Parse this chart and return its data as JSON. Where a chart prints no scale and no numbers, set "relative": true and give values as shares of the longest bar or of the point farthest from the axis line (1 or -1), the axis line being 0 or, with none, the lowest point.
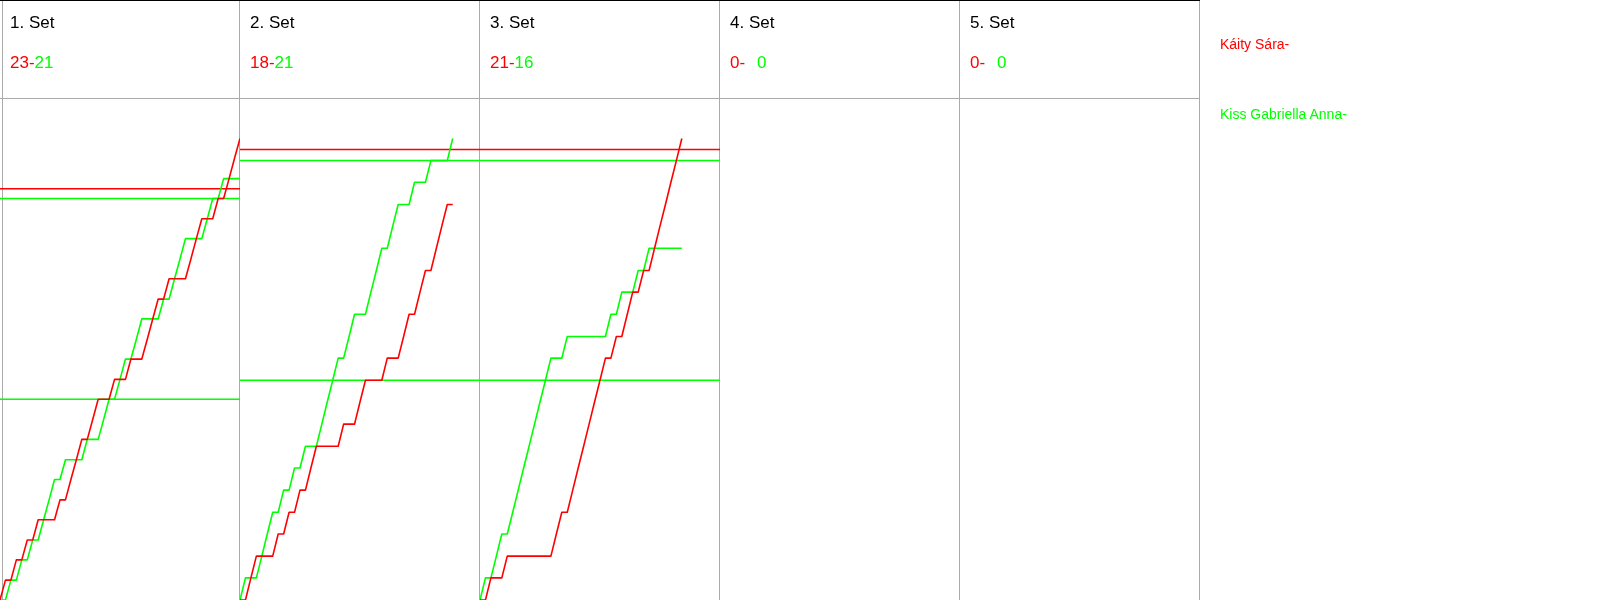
{
  "chart_data": [
    {
      "type": "line",
      "title": "1. Set",
      "annotations": [
        "23-",
        "21"
      ],
      "relative": true,
      "categories": [
        null,
        null,
        null,
        null,
        null,
        null,
        null,
        null,
        null,
        null,
        null,
        null,
        null,
        null,
        null,
        null,
        null,
        null,
        null,
        null,
        null,
        null,
        null,
        null,
        null,
        null,
        null,
        null,
        null,
        null,
        null,
        null,
        null,
        null,
        null,
        null,
        null,
        null,
        null,
        null,
        null,
        null,
        null,
        null,
        null
      ],
      "series": [
        {
          "color": "#ff0000",
          "values": [
            0,
            0.043,
            0.043,
            0.087,
            0.087,
            0.13,
            0.13,
            0.174,
            0.174,
            0.174,
            0.174,
            0.217,
            0.217,
            0.261,
            0.304,
            0.348,
            0.348,
            0.391,
            0.435,
            0.435,
            0.435,
            0.478,
            0.478,
            0.478,
            0.522,
            0.522,
            0.522,
            0.565,
            0.609,
            0.652,
            0.652,
            0.696,
            0.696,
            0.696,
            0.696,
            0.739,
            0.783,
            0.826,
            0.826,
            0.826,
            0.87,
            0.87,
            0.913,
            0.957,
            1
          ]
        },
        {
          "color": "#00ff00",
          "values": [
            0,
            0,
            0.043,
            0.043,
            0.087,
            0.087,
            0.13,
            0.13,
            0.174,
            0.217,
            0.261,
            0.261,
            0.304,
            0.304,
            0.304,
            0.304,
            0.348,
            0.348,
            0.348,
            0.391,
            0.435,
            0.435,
            0.478,
            0.522,
            0.522,
            0.565,
            0.609,
            0.609,
            0.609,
            0.609,
            0.652,
            0.652,
            0.696,
            0.739,
            0.783,
            0.783,
            0.783,
            0.783,
            0.826,
            0.87,
            0.87,
            0.913,
            0.913,
            0.913,
            0.913
          ]
        }
      ],
      "ref_lines": [
        {
          "axis": "y",
          "value": 0.891,
          "color": "#ff0000"
        },
        {
          "axis": "y",
          "value": 0.87,
          "color": "#00ff00"
        },
        {
          "axis": "y",
          "value": 0.435,
          "color": "#00ff00"
        }
      ]
    },
    {
      "type": "line",
      "title": "2. Set",
      "annotations": [
        "18-",
        "21"
      ],
      "relative": true,
      "categories": [
        null,
        null,
        null,
        null,
        null,
        null,
        null,
        null,
        null,
        null,
        null,
        null,
        null,
        null,
        null,
        null,
        null,
        null,
        null,
        null,
        null,
        null,
        null,
        null,
        null,
        null,
        null,
        null,
        null,
        null,
        null,
        null,
        null,
        null,
        null,
        null,
        null,
        null,
        null,
        null,
        null,
        null,
        null,
        null,
        null
      ],
      "series": [
        {
          "color": "#ff0000",
          "values": [
            0,
            0,
            0.048,
            0.095,
            0.095,
            0.095,
            0.095,
            0.143,
            0.143,
            0.19,
            0.19,
            0.238,
            0.238,
            0.286,
            0.333,
            0.333,
            0.333,
            0.333,
            0.333,
            0.381,
            0.381,
            0.381,
            0.429,
            0.476,
            0.476,
            0.476,
            0.476,
            0.524,
            0.524,
            0.524,
            0.571,
            0.619,
            0.619,
            0.667,
            0.714,
            0.714,
            0.762,
            0.81,
            0.857,
            0.857,
            null,
            null,
            null,
            null,
            null
          ]
        },
        {
          "color": "#00ff00",
          "values": [
            0,
            0.048,
            0.048,
            0.048,
            0.095,
            0.143,
            0.19,
            0.19,
            0.238,
            0.238,
            0.286,
            0.286,
            0.333,
            0.333,
            0.333,
            0.381,
            0.429,
            0.476,
            0.524,
            0.524,
            0.571,
            0.619,
            0.619,
            0.619,
            0.667,
            0.714,
            0.762,
            0.762,
            0.81,
            0.857,
            0.857,
            0.857,
            0.905,
            0.905,
            0.905,
            0.952,
            0.952,
            0.952,
            0.952,
            1,
            null,
            null,
            null,
            null,
            null
          ]
        }
      ],
      "ref_lines": [
        {
          "axis": "y",
          "value": 0.976,
          "color": "#ff0000"
        },
        {
          "axis": "y",
          "value": 0.952,
          "color": "#00ff00"
        },
        {
          "axis": "y",
          "value": 0.476,
          "color": "#00ff00"
        }
      ]
    },
    {
      "type": "line",
      "title": "3. Set",
      "annotations": [
        "21-",
        "16"
      ],
      "relative": true,
      "legend": "right",
      "categories": [
        null,
        null,
        null,
        null,
        null,
        null,
        null,
        null,
        null,
        null,
        null,
        null,
        null,
        null,
        null,
        null,
        null,
        null,
        null,
        null,
        null,
        null,
        null,
        null,
        null,
        null,
        null,
        null,
        null,
        null,
        null,
        null,
        null,
        null,
        null,
        null,
        null,
        null,
        null,
        null,
        null,
        null,
        null,
        null,
        null
      ],
      "series": [
        {
          "name": "Káity Sára-",
          "color": "#ff0000",
          "values": [
            0,
            0,
            0.048,
            0.048,
            0.048,
            0.095,
            0.095,
            0.095,
            0.095,
            0.095,
            0.095,
            0.095,
            0.095,
            0.095,
            0.143,
            0.19,
            0.19,
            0.238,
            0.286,
            0.333,
            0.381,
            0.429,
            0.476,
            0.524,
            0.524,
            0.571,
            0.571,
            0.619,
            0.667,
            0.667,
            0.714,
            0.714,
            0.762,
            0.81,
            0.857,
            0.905,
            0.952,
            1,
            null,
            null,
            null,
            null,
            null,
            null,
            null
          ]
        },
        {
          "name": "Kiss Gabriella Anna-",
          "color": "#00ff00",
          "values": [
            0,
            0.048,
            0.048,
            0.095,
            0.143,
            0.143,
            0.19,
            0.238,
            0.286,
            0.333,
            0.381,
            0.429,
            0.476,
            0.524,
            0.524,
            0.524,
            0.571,
            0.571,
            0.571,
            0.571,
            0.571,
            0.571,
            0.571,
            0.571,
            0.619,
            0.619,
            0.667,
            0.667,
            0.667,
            0.714,
            0.714,
            0.762,
            0.762,
            0.762,
            0.762,
            0.762,
            0.762,
            0.762,
            null,
            null,
            null,
            null,
            null,
            null,
            null
          ]
        }
      ],
      "ref_lines": [
        {
          "axis": "y",
          "value": 0.976,
          "color": "#ff0000"
        },
        {
          "axis": "y",
          "value": 0.952,
          "color": "#00ff00"
        },
        {
          "axis": "y",
          "value": 0.476,
          "color": "#00ff00"
        }
      ]
    },
    {
      "type": "other",
      "title": "4. Set",
      "annotations": [
        "0-",
        "0"
      ]
    },
    {
      "type": "other",
      "title": "5. Set",
      "annotations": [
        "0-",
        "0"
      ]
    }
  ]
}
